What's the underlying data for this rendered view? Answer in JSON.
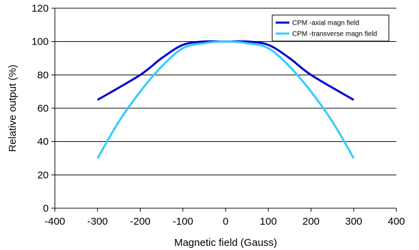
{
  "chart_data": {
    "type": "line",
    "title": "",
    "xlabel": "Magnetic field (Gauss)",
    "ylabel": "Relative output (%)",
    "xlim": [
      -400,
      400
    ],
    "ylim": [
      0,
      120
    ],
    "x_ticks": [
      -400,
      -300,
      -200,
      -100,
      0,
      100,
      200,
      300,
      400
    ],
    "x_tick_labels": [
      "-400",
      "-300",
      "-200",
      "-100",
      "0",
      "100",
      "200",
      "300",
      "400"
    ],
    "y_ticks": [
      0,
      20,
      40,
      60,
      80,
      100,
      120
    ],
    "y_tick_labels": [
      "0",
      "20",
      "40",
      "60",
      "80",
      "100",
      "120"
    ],
    "grid": "horizontal",
    "legend_position": "top-right",
    "series": [
      {
        "name": "CPM -axial magn field",
        "color": "#0000cc",
        "x": [
          -300,
          -200,
          -150,
          -100,
          -50,
          0,
          50,
          100,
          150,
          200,
          300
        ],
        "y": [
          65,
          80,
          90,
          98,
          100,
          100,
          100,
          98,
          90,
          80,
          65
        ]
      },
      {
        "name": "CPM -transverse magn field",
        "color": "#33ccff",
        "x": [
          -300,
          -250,
          -200,
          -150,
          -100,
          -50,
          0,
          50,
          100,
          150,
          200,
          250,
          300
        ],
        "y": [
          30,
          52,
          70,
          85,
          96,
          99,
          100,
          99,
          96,
          85,
          70,
          52,
          30
        ]
      }
    ]
  }
}
